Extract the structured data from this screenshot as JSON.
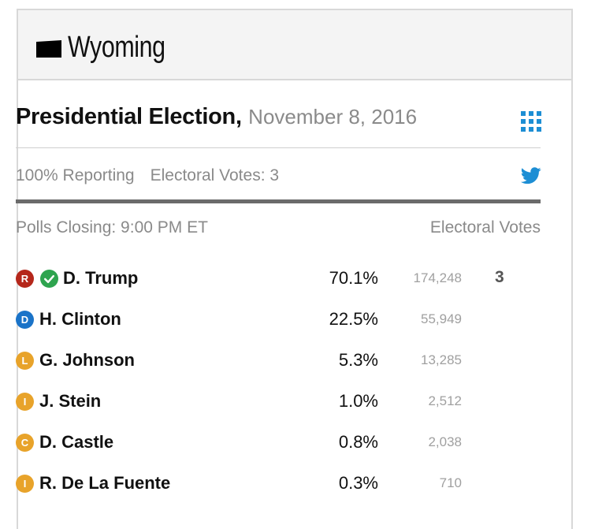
{
  "header": {
    "state": "Wyoming"
  },
  "election": {
    "title": "Presidential Election,",
    "date": "November 8, 2016",
    "reporting": "100% Reporting",
    "electoral_votes_label": "Electoral Votes: 3",
    "polls_closing": "Polls Closing: 9:00 PM ET",
    "ev_column_header": "Electoral Votes"
  },
  "icons": {
    "state": "wyoming-shape-icon",
    "grid": "grid-icon",
    "share": "twitter-icon",
    "winner": "check-icon"
  },
  "colors": {
    "republican": "#b5271b",
    "democrat": "#1a73c8",
    "other": "#e8a32a",
    "winner": "#2ea44f",
    "twitter": "#1d8ed4"
  },
  "candidates": [
    {
      "party": "R",
      "name": "D. Trump",
      "percent": "70.1%",
      "votes": "174,248",
      "electoral_votes": "3",
      "winner": true
    },
    {
      "party": "D",
      "name": "H. Clinton",
      "percent": "22.5%",
      "votes": "55,949",
      "electoral_votes": "",
      "winner": false
    },
    {
      "party": "L",
      "name": "G. Johnson",
      "percent": "5.3%",
      "votes": "13,285",
      "electoral_votes": "",
      "winner": false
    },
    {
      "party": "I",
      "name": "J. Stein",
      "percent": "1.0%",
      "votes": "2,512",
      "electoral_votes": "",
      "winner": false
    },
    {
      "party": "C",
      "name": "D. Castle",
      "percent": "0.8%",
      "votes": "2,038",
      "electoral_votes": "",
      "winner": false
    },
    {
      "party": "I",
      "name": "R. De La Fuente",
      "percent": "0.3%",
      "votes": "710",
      "electoral_votes": "",
      "winner": false
    }
  ]
}
